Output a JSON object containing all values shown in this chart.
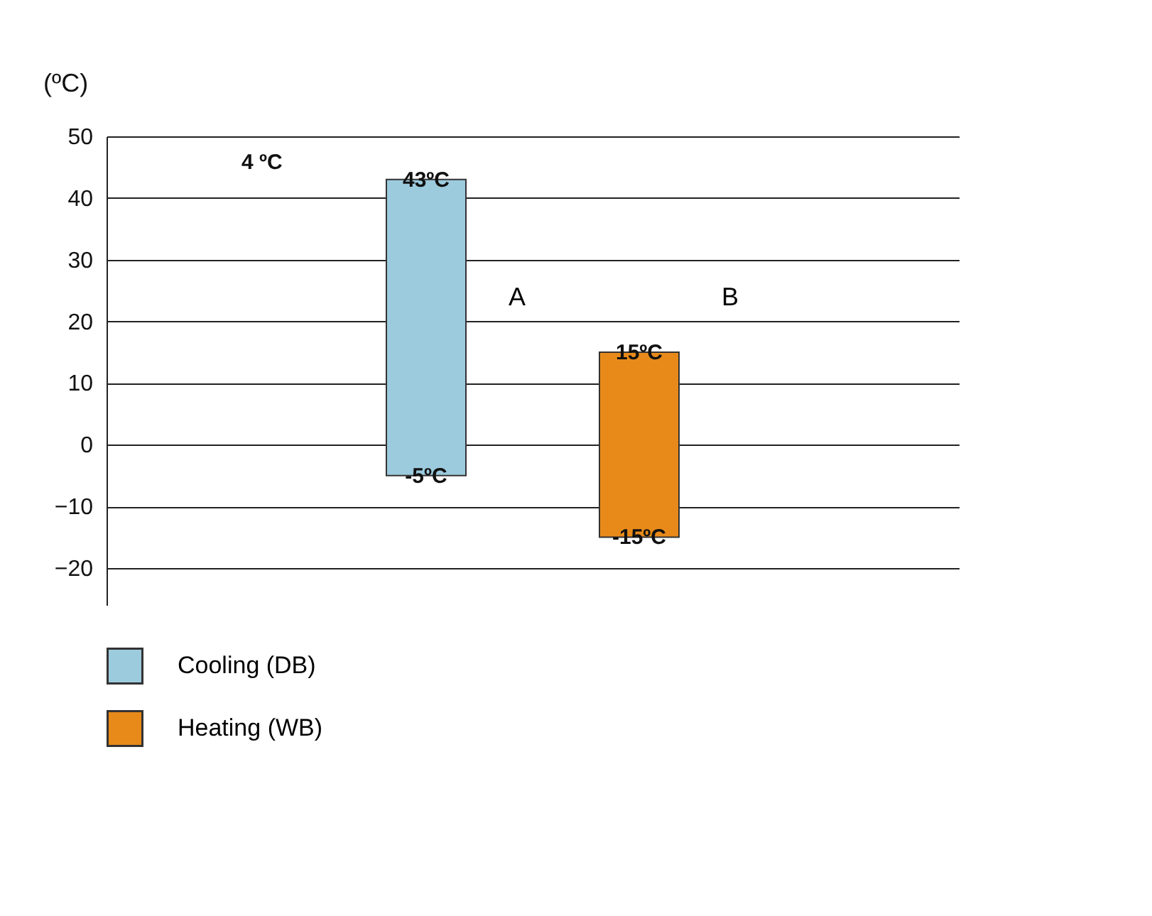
{
  "chart_data": {
    "type": "bar",
    "ylabel": "(ºC)",
    "categories": [
      "A",
      "B"
    ],
    "series": [
      {
        "name": "Cooling (DB)",
        "color": "#9ccbde",
        "values": [
          48,
          null
        ],
        "base": [
          -5,
          null
        ]
      },
      {
        "name": "Heating (WB)",
        "color": "#e88a1a",
        "values": [
          null,
          30
        ],
        "base": [
          null,
          -15
        ]
      }
    ],
    "ylim": [
      -26,
      50
    ],
    "yticks": [
      -20,
      -10,
      0,
      10,
      20,
      30,
      40,
      50
    ],
    "grid": "y",
    "tick_labels": "y",
    "legend": "bottom left",
    "annotations": [
      "4  ºC",
      "43ºC",
      "-5ºC",
      "15ºC",
      "-15ºC"
    ]
  }
}
